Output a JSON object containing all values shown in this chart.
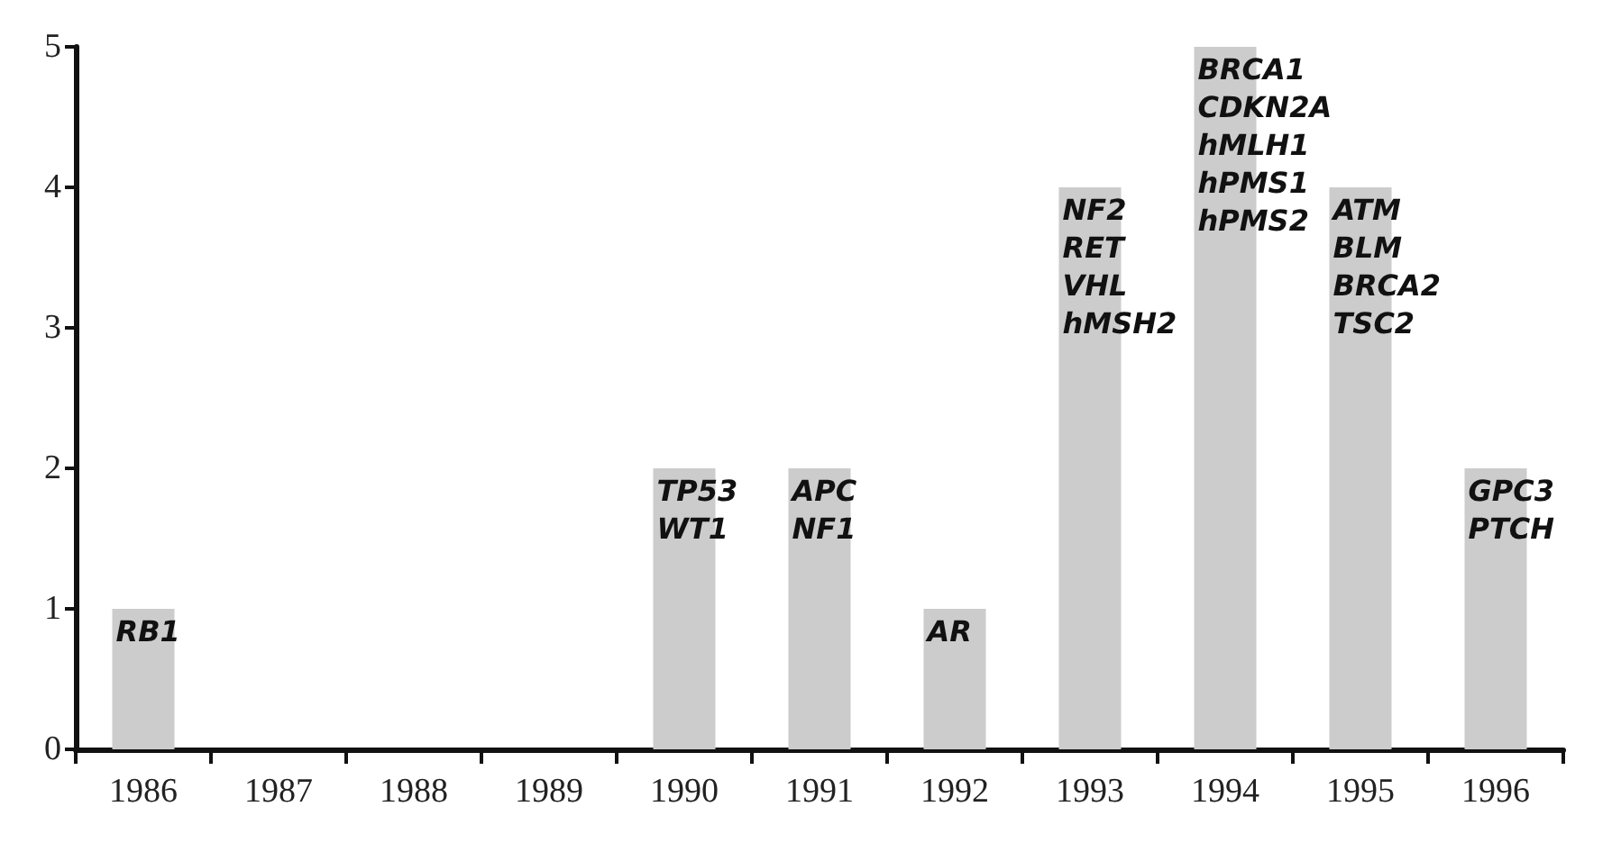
{
  "chart_data": {
    "type": "bar",
    "categories": [
      "1986",
      "1987",
      "1988",
      "1989",
      "1990",
      "1991",
      "1992",
      "1993",
      "1994",
      "1995",
      "1996"
    ],
    "values": [
      1,
      0,
      0,
      0,
      2,
      2,
      1,
      4,
      5,
      4,
      2
    ],
    "value_labels": [
      "RB1",
      null,
      null,
      null,
      "TP53\nWT1",
      "APC\nNF1",
      "AR",
      "NF2\nRET\nVHL\nhMSH2",
      "BRCA1\nCDKN2A\nhMLH1\nhPMS1\nhPMS2",
      "ATM\nBLM\nBRCA2\nTSC2",
      "GPC3\nPTCH"
    ],
    "color": "#cccccc",
    "ylim": [
      0,
      5
    ],
    "yticks": [
      0,
      1,
      2,
      3,
      4,
      5
    ],
    "grid": false
  }
}
